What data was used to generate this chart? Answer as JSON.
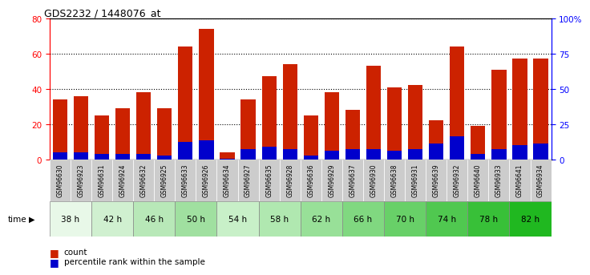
{
  "title": "GDS2232 / 1448076_at",
  "samples": [
    "GSM96630",
    "GSM96923",
    "GSM96631",
    "GSM96924",
    "GSM96632",
    "GSM96925",
    "GSM96633",
    "GSM96926",
    "GSM96634",
    "GSM96927",
    "GSM96635",
    "GSM96928",
    "GSM96636",
    "GSM96929",
    "GSM96637",
    "GSM96930",
    "GSM96638",
    "GSM96931",
    "GSM96639",
    "GSM96932",
    "GSM96640",
    "GSM96933",
    "GSM96641",
    "GSM96934"
  ],
  "count_values": [
    34,
    36,
    25,
    29,
    38,
    29,
    64,
    74,
    4,
    34,
    47,
    54,
    25,
    38,
    28,
    53,
    41,
    42,
    22,
    64,
    19,
    51,
    57,
    57
  ],
  "percentile_values": [
    4,
    4,
    3,
    3,
    3,
    2,
    10,
    11,
    0.5,
    6,
    7,
    6,
    2,
    5,
    6,
    6,
    5,
    6,
    9,
    13,
    3,
    6,
    8,
    9
  ],
  "time_groups": [
    {
      "label": "38 h",
      "indices": [
        0,
        1
      ]
    },
    {
      "label": "42 h",
      "indices": [
        2,
        3
      ]
    },
    {
      "label": "46 h",
      "indices": [
        4,
        5
      ]
    },
    {
      "label": "50 h",
      "indices": [
        6,
        7
      ]
    },
    {
      "label": "54 h",
      "indices": [
        8,
        9
      ]
    },
    {
      "label": "58 h",
      "indices": [
        10,
        11
      ]
    },
    {
      "label": "62 h",
      "indices": [
        12,
        13
      ]
    },
    {
      "label": "66 h",
      "indices": [
        14,
        15
      ]
    },
    {
      "label": "70 h",
      "indices": [
        16,
        17
      ]
    },
    {
      "label": "74 h",
      "indices": [
        18,
        19
      ]
    },
    {
      "label": "78 h",
      "indices": [
        20,
        21
      ]
    },
    {
      "label": "82 h",
      "indices": [
        22,
        23
      ]
    }
  ],
  "green_shades": [
    "#e8f8e8",
    "#d0f0d0",
    "#b8e8b8",
    "#a0e0a0",
    "#c8f0c8",
    "#b0e8b0",
    "#98e098",
    "#80d880",
    "#68d068",
    "#50c850",
    "#38c038",
    "#20b820"
  ],
  "bar_color_red": "#cc2200",
  "bar_color_blue": "#0000cc",
  "sample_box_color": "#cccccc",
  "plot_bg_color": "#ffffff",
  "fig_bg_color": "#ffffff",
  "ylim_left": [
    0,
    80
  ],
  "ylim_right": [
    0,
    100
  ],
  "yticks_left": [
    0,
    20,
    40,
    60,
    80
  ],
  "yticks_right": [
    0,
    25,
    50,
    75,
    100
  ],
  "ytick_labels_right": [
    "0",
    "25",
    "50",
    "75",
    "100%"
  ],
  "legend_count": "count",
  "legend_percentile": "percentile rank within the sample",
  "grid_color": "black",
  "grid_style": "dotted"
}
